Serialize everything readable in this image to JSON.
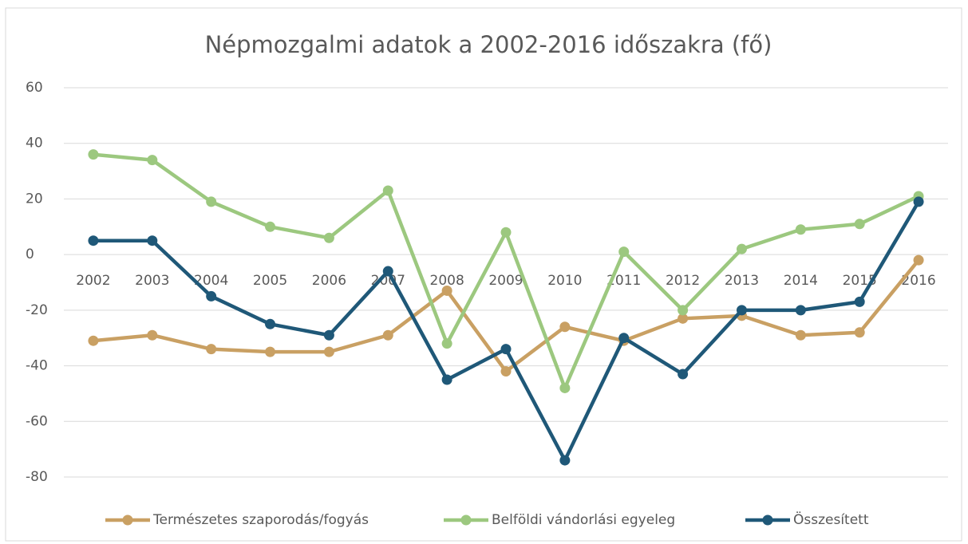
{
  "chart_data": {
    "type": "line",
    "title": "Népmozgalmi adatok a 2002-2016 időszakra (fő)",
    "categories": [
      "2002",
      "2003",
      "2004",
      "2005",
      "2006",
      "2007",
      "2008",
      "2009",
      "2010",
      "2011",
      "2012",
      "2013",
      "2014",
      "2015",
      "2016"
    ],
    "series": [
      {
        "name": "Természetes szaporodás/fogyás",
        "color": "#c9a063",
        "values": [
          -31,
          -29,
          -34,
          -35,
          -35,
          -29,
          -13,
          -42,
          -26,
          -31,
          -23,
          -22,
          -29,
          -28,
          -2
        ]
      },
      {
        "name": "Belföldi vándorlási egyeleg",
        "color": "#9cc87f",
        "values": [
          36,
          34,
          19,
          10,
          6,
          23,
          -32,
          8,
          -48,
          1,
          -20,
          2,
          9,
          11,
          21
        ]
      },
      {
        "name": "Összesített",
        "color": "#1f5878",
        "values": [
          5,
          5,
          -15,
          -25,
          -29,
          -6,
          -45,
          -34,
          -74,
          -30,
          -43,
          -20,
          -20,
          -17,
          19
        ]
      }
    ],
    "ylim": [
      -80,
      60
    ],
    "yticks": [
      -80,
      -60,
      -40,
      -20,
      0,
      20,
      40,
      60
    ],
    "grid": true,
    "legend": "bottom"
  }
}
